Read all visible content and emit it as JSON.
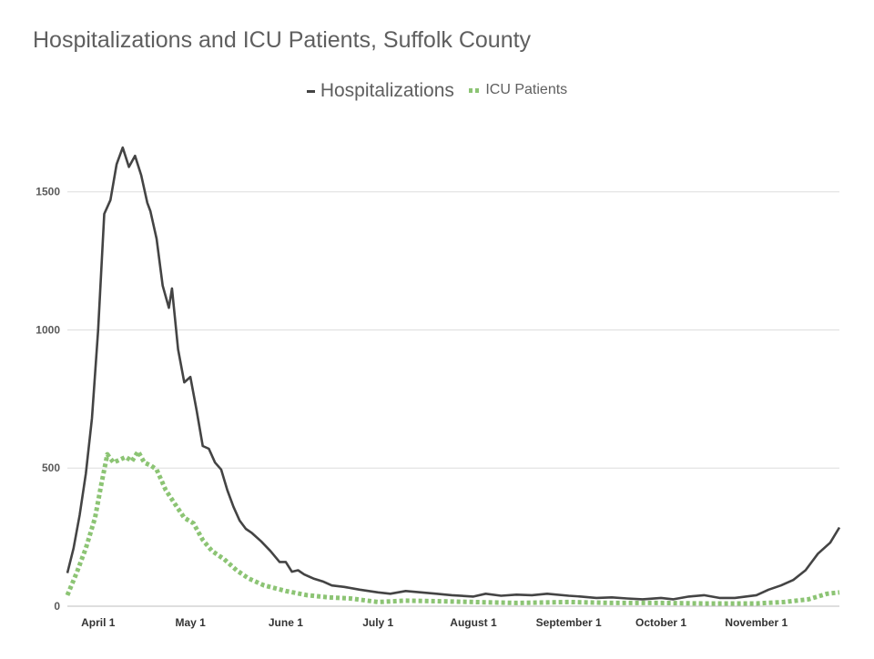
{
  "chart_data": {
    "type": "line",
    "title": "Hospitalizations and ICU Patients, Suffolk County",
    "xlabel": "",
    "ylabel": "",
    "ylim": [
      0,
      1700
    ],
    "yticks": [
      0,
      500,
      1000,
      1500
    ],
    "xlim": [
      "2020-03-22",
      "2020-11-28"
    ],
    "xticks": [
      {
        "date": "2020-04-01",
        "label": "April 1"
      },
      {
        "date": "2020-05-01",
        "label": "May 1"
      },
      {
        "date": "2020-06-01",
        "label": "June 1"
      },
      {
        "date": "2020-07-01",
        "label": "July 1"
      },
      {
        "date": "2020-08-01",
        "label": "August 1"
      },
      {
        "date": "2020-09-01",
        "label": "September 1"
      },
      {
        "date": "2020-10-01",
        "label": "October 1"
      },
      {
        "date": "2020-11-01",
        "label": "November 1"
      }
    ],
    "grid": true,
    "legend_position": "top-center",
    "series": [
      {
        "name": "Hospitalizations",
        "color": "#444444",
        "style": "solid",
        "points": [
          [
            "2020-03-22",
            120
          ],
          [
            "2020-03-24",
            210
          ],
          [
            "2020-03-26",
            330
          ],
          [
            "2020-03-28",
            480
          ],
          [
            "2020-03-30",
            680
          ],
          [
            "2020-04-01",
            1000
          ],
          [
            "2020-04-03",
            1420
          ],
          [
            "2020-04-05",
            1470
          ],
          [
            "2020-04-07",
            1600
          ],
          [
            "2020-04-09",
            1660
          ],
          [
            "2020-04-11",
            1590
          ],
          [
            "2020-04-13",
            1630
          ],
          [
            "2020-04-15",
            1560
          ],
          [
            "2020-04-17",
            1460
          ],
          [
            "2020-04-18",
            1430
          ],
          [
            "2020-04-20",
            1330
          ],
          [
            "2020-04-22",
            1160
          ],
          [
            "2020-04-24",
            1080
          ],
          [
            "2020-04-25",
            1150
          ],
          [
            "2020-04-27",
            930
          ],
          [
            "2020-04-29",
            810
          ],
          [
            "2020-05-01",
            830
          ],
          [
            "2020-05-03",
            710
          ],
          [
            "2020-05-05",
            580
          ],
          [
            "2020-05-07",
            570
          ],
          [
            "2020-05-09",
            520
          ],
          [
            "2020-05-11",
            495
          ],
          [
            "2020-05-13",
            420
          ],
          [
            "2020-05-15",
            360
          ],
          [
            "2020-05-17",
            310
          ],
          [
            "2020-05-19",
            280
          ],
          [
            "2020-05-21",
            265
          ],
          [
            "2020-05-24",
            235
          ],
          [
            "2020-05-27",
            200
          ],
          [
            "2020-05-30",
            160
          ],
          [
            "2020-06-01",
            160
          ],
          [
            "2020-06-03",
            125
          ],
          [
            "2020-06-05",
            130
          ],
          [
            "2020-06-07",
            115
          ],
          [
            "2020-06-10",
            100
          ],
          [
            "2020-06-13",
            90
          ],
          [
            "2020-06-16",
            75
          ],
          [
            "2020-06-20",
            70
          ],
          [
            "2020-06-25",
            60
          ],
          [
            "2020-07-01",
            50
          ],
          [
            "2020-07-05",
            45
          ],
          [
            "2020-07-10",
            55
          ],
          [
            "2020-07-15",
            50
          ],
          [
            "2020-07-20",
            45
          ],
          [
            "2020-07-25",
            40
          ],
          [
            "2020-08-01",
            35
          ],
          [
            "2020-08-05",
            45
          ],
          [
            "2020-08-10",
            38
          ],
          [
            "2020-08-15",
            42
          ],
          [
            "2020-08-20",
            40
          ],
          [
            "2020-08-25",
            45
          ],
          [
            "2020-09-01",
            38
          ],
          [
            "2020-09-05",
            35
          ],
          [
            "2020-09-10",
            30
          ],
          [
            "2020-09-15",
            32
          ],
          [
            "2020-09-20",
            28
          ],
          [
            "2020-09-25",
            25
          ],
          [
            "2020-10-01",
            30
          ],
          [
            "2020-10-05",
            25
          ],
          [
            "2020-10-10",
            35
          ],
          [
            "2020-10-15",
            40
          ],
          [
            "2020-10-20",
            30
          ],
          [
            "2020-10-25",
            30
          ],
          [
            "2020-11-01",
            40
          ],
          [
            "2020-11-05",
            60
          ],
          [
            "2020-11-09",
            75
          ],
          [
            "2020-11-13",
            95
          ],
          [
            "2020-11-17",
            130
          ],
          [
            "2020-11-21",
            190
          ],
          [
            "2020-11-25",
            230
          ],
          [
            "2020-11-28",
            285
          ]
        ]
      },
      {
        "name": "ICU Patients",
        "color": "#8cc474",
        "style": "dotted",
        "points": [
          [
            "2020-03-22",
            40
          ],
          [
            "2020-03-25",
            120
          ],
          [
            "2020-03-28",
            210
          ],
          [
            "2020-03-31",
            320
          ],
          [
            "2020-04-02",
            440
          ],
          [
            "2020-04-04",
            550
          ],
          [
            "2020-04-06",
            520
          ],
          [
            "2020-04-08",
            530
          ],
          [
            "2020-04-10",
            540
          ],
          [
            "2020-04-12",
            525
          ],
          [
            "2020-04-14",
            560
          ],
          [
            "2020-04-16",
            520
          ],
          [
            "2020-04-18",
            510
          ],
          [
            "2020-04-20",
            495
          ],
          [
            "2020-04-23",
            420
          ],
          [
            "2020-04-26",
            370
          ],
          [
            "2020-04-29",
            320
          ],
          [
            "2020-05-02",
            300
          ],
          [
            "2020-05-05",
            240
          ],
          [
            "2020-05-08",
            200
          ],
          [
            "2020-05-12",
            170
          ],
          [
            "2020-05-16",
            130
          ],
          [
            "2020-05-20",
            100
          ],
          [
            "2020-05-25",
            75
          ],
          [
            "2020-06-01",
            55
          ],
          [
            "2020-06-08",
            40
          ],
          [
            "2020-06-15",
            32
          ],
          [
            "2020-06-22",
            28
          ],
          [
            "2020-07-01",
            15
          ],
          [
            "2020-07-10",
            20
          ],
          [
            "2020-07-20",
            18
          ],
          [
            "2020-08-01",
            15
          ],
          [
            "2020-08-15",
            12
          ],
          [
            "2020-09-01",
            15
          ],
          [
            "2020-09-15",
            12
          ],
          [
            "2020-10-01",
            12
          ],
          [
            "2020-10-15",
            10
          ],
          [
            "2020-11-01",
            10
          ],
          [
            "2020-11-10",
            15
          ],
          [
            "2020-11-18",
            25
          ],
          [
            "2020-11-24",
            45
          ],
          [
            "2020-11-28",
            50
          ]
        ]
      }
    ]
  }
}
